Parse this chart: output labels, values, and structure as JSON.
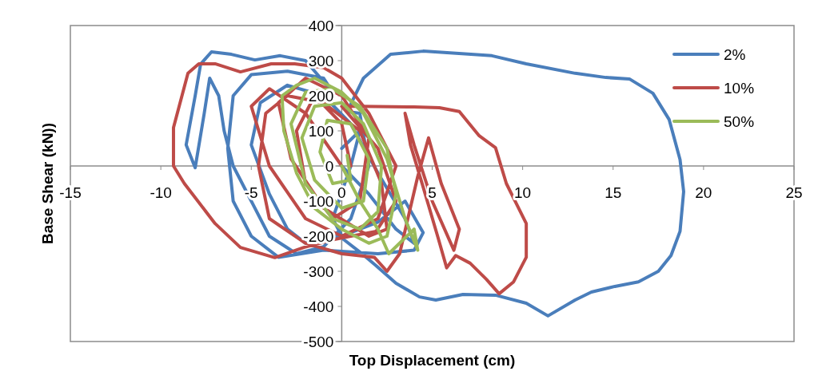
{
  "chart_data": {
    "type": "line",
    "xlabel": "Top Displacement (cm)",
    "ylabel": "Base Shear (kN))",
    "xlim": [
      -15,
      25
    ],
    "ylim": [
      -500,
      400
    ],
    "xticks": [
      -15,
      -10,
      -5,
      0,
      5,
      10,
      15,
      20,
      25
    ],
    "yticks": [
      -500,
      -400,
      -300,
      -200,
      -100,
      0,
      100,
      200,
      300,
      400
    ],
    "legend": "top right",
    "grid": false,
    "marker": "none",
    "line_style": "solid",
    "series": [
      {
        "name": "2%",
        "color": "#4a7ebb",
        "x": [
          0,
          1.5,
          3,
          4,
          3.5,
          2,
          0.5,
          -1,
          -3,
          -4.5,
          -5,
          -4,
          -3,
          -2,
          0,
          2,
          3.5,
          4.5,
          4,
          2,
          -1,
          -3.5,
          -5,
          -6,
          -6.3,
          -6,
          -5,
          -3,
          -1,
          -0.5,
          -2,
          -3.4,
          -4.8,
          -6.1,
          -7.2,
          -7.8,
          -8.1,
          -8.6,
          -8.1,
          -7.6,
          -7.3,
          -6.8,
          -6.5,
          -6,
          -5,
          -4,
          -2.5,
          -1,
          0.5,
          1.5,
          1,
          0.3,
          1.2,
          2.7,
          4.5,
          8.3,
          10.2,
          12.9,
          14.6,
          15.9,
          17.2,
          18.1,
          18.7,
          18.9,
          18.7,
          18.2,
          17.5,
          16.4,
          15.1,
          13.8,
          12.9,
          11.4,
          10.2,
          8.5,
          6.7,
          5.2,
          4.3,
          3,
          1.9,
          1,
          0.1,
          -0.5,
          0.5,
          1,
          0
        ],
        "values": [
          0,
          -80,
          -180,
          -220,
          -150,
          -20,
          120,
          200,
          230,
          180,
          60,
          -80,
          -180,
          -220,
          -200,
          -160,
          -100,
          -190,
          -240,
          -250,
          -240,
          -260,
          -200,
          -100,
          50,
          200,
          260,
          270,
          250,
          210,
          300,
          314,
          302,
          318,
          325,
          290,
          200,
          60,
          -5,
          150,
          250,
          200,
          100,
          0,
          -100,
          -200,
          -250,
          -230,
          -150,
          0,
          150,
          155,
          250,
          318,
          327,
          314,
          291,
          264,
          252,
          248,
          207,
          132,
          18,
          -73,
          -186,
          -255,
          -300,
          -330,
          -343,
          -359,
          -382,
          -427,
          -391,
          -368,
          -366,
          -382,
          -373,
          -334,
          -284,
          -245,
          -209,
          -150,
          0,
          100,
          50
        ]
      },
      {
        "name": "10%",
        "color": "#be4b48",
        "x": [
          0,
          -2,
          -4,
          -5,
          -4,
          -2,
          0,
          2,
          3,
          1.5,
          0,
          -1,
          -2.6,
          -3.9,
          -5.6,
          -7,
          -7.9,
          -8.5,
          -9.3,
          -9.3,
          -8.7,
          -7,
          -5.6,
          -3.7,
          -2.1,
          -0.4,
          1.9,
          3,
          2,
          0,
          1,
          4,
          5.4,
          6.5,
          7.6,
          8.5,
          9.1,
          10.2,
          10.2,
          9.5,
          8.7,
          8,
          7.1,
          6.3,
          5.8,
          5.3,
          4.5,
          3.8,
          3.5,
          4,
          5,
          6.2,
          6.5,
          5.5,
          4.8,
          4.2,
          3.2,
          2.5,
          1.8,
          0,
          -2,
          -4,
          -4.6,
          -4.2,
          -3,
          -1,
          1,
          2.2,
          2.5,
          1.5,
          -1,
          -2.8,
          -3.5,
          -2,
          0,
          1.5,
          1,
          -0.5,
          -2,
          -2.5,
          -1.5,
          0,
          0.5
        ],
        "values": [
          0,
          150,
          220,
          170,
          0,
          -150,
          -200,
          -150,
          0,
          150,
          250,
          280,
          291,
          291,
          268,
          291,
          291,
          264,
          109,
          0,
          -50,
          -164,
          -232,
          -261,
          -232,
          -209,
          -186,
          -100,
          50,
          170,
          170,
          168,
          166,
          155,
          86,
          52,
          -50,
          -164,
          -260,
          -330,
          -364,
          -323,
          -277,
          -255,
          -290,
          -200,
          -60,
          60,
          150,
          60,
          -100,
          -240,
          -180,
          -50,
          80,
          -30,
          -250,
          -300,
          -260,
          -250,
          -220,
          -150,
          0,
          150,
          200,
          180,
          100,
          -50,
          -180,
          -200,
          -120,
          20,
          180,
          250,
          200,
          80,
          -100,
          -150,
          -50,
          100,
          200,
          120,
          0
        ]
      },
      {
        "name": "50%",
        "color": "#9bbb59",
        "x": [
          0,
          1,
          2,
          2.6,
          3.2,
          4,
          4.2,
          3.5,
          2.5,
          1.2,
          0,
          -1.5,
          -2.5,
          -3.3,
          -3.2,
          -2.5,
          -1.5,
          0,
          1.5,
          2.5,
          3,
          2.5,
          1,
          -0.5,
          -2,
          -2.8,
          -2,
          -0.5,
          1,
          2,
          2.2,
          1.2,
          0,
          -1.5,
          -2.2,
          -1.5,
          0,
          1.2,
          1.5,
          0.5,
          -0.8,
          -1.2,
          -0.5,
          0.5,
          0.3
        ],
        "values": [
          0,
          -100,
          -180,
          -250,
          -220,
          -180,
          -240,
          -150,
          20,
          150,
          210,
          250,
          230,
          200,
          100,
          -20,
          -120,
          -180,
          -220,
          -200,
          -80,
          50,
          170,
          220,
          210,
          120,
          -50,
          -150,
          -180,
          -130,
          0,
          120,
          180,
          170,
          80,
          -40,
          -120,
          -100,
          20,
          120,
          130,
          40,
          -50,
          -40,
          30
        ]
      }
    ]
  }
}
